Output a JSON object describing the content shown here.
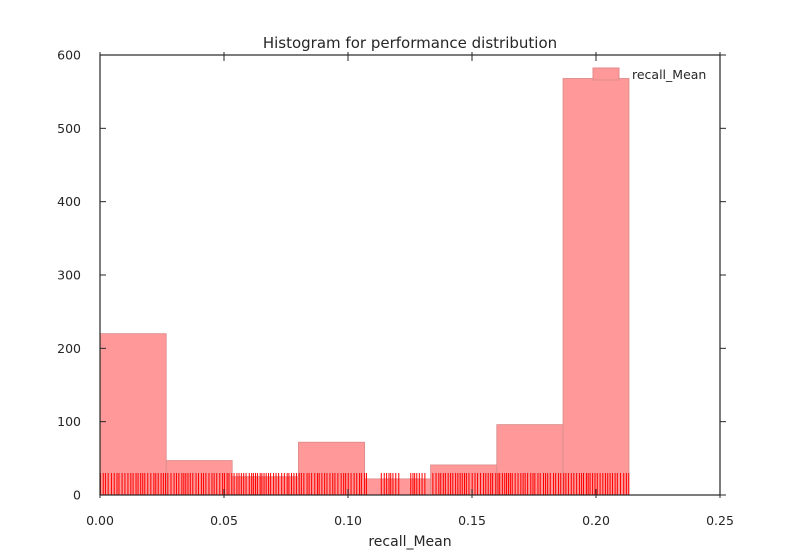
{
  "chart_data": {
    "type": "histogram",
    "title": "Histogram for performance distribution",
    "xlabel": "recall_Mean",
    "ylabel": "",
    "xlim": [
      0.0,
      0.25
    ],
    "ylim": [
      0,
      600
    ],
    "xticks": [
      "0.00",
      "0.05",
      "0.10",
      "0.15",
      "0.20",
      "0.25"
    ],
    "yticks": [
      "0",
      "100",
      "200",
      "300",
      "400",
      "500",
      "600"
    ],
    "legend": {
      "label": "recall_Mean",
      "placement": "top-right"
    },
    "bin_edges": [
      0.0,
      0.0267,
      0.0533,
      0.08,
      0.1067,
      0.1333,
      0.16,
      0.1867,
      0.2133
    ],
    "counts": [
      220,
      47,
      25,
      72,
      22,
      41,
      96,
      568
    ],
    "bar_color": "#ff9999",
    "rug_color": "#ff0000",
    "rug_range": [
      0.0,
      0.2133
    ],
    "rug_height_units": 30,
    "rug_gaps": [
      [
        0.108,
        0.113
      ],
      [
        0.121,
        0.125
      ],
      [
        0.131,
        0.134
      ]
    ]
  }
}
